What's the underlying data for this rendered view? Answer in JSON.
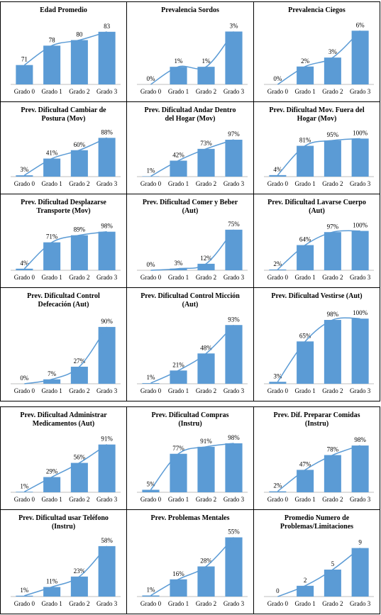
{
  "chart_data": [
    {
      "type": "bar",
      "title": "Edad Promedio",
      "categories": [
        "Grado 0",
        "Grado 1",
        "Grado 2",
        "Grado 3"
      ],
      "values": [
        71,
        78,
        80,
        83
      ],
      "color": "#5b9bd5",
      "ylim": [
        64,
        85
      ]
    },
    {
      "type": "bar",
      "title": "Prevalencia Sordos",
      "categories": [
        "Grado 0",
        "Grado 1",
        "Grado 2",
        "Grado 3"
      ],
      "values": [
        0,
        1,
        1,
        3
      ],
      "value_labels": [
        "0%",
        "1%",
        "1%",
        "3%"
      ],
      "color": "#5b9bd5",
      "ylim": [
        0,
        3.3
      ]
    },
    {
      "type": "bar",
      "title": "Prevalencia Ciegos",
      "categories": [
        "Grado 0",
        "Grado 1",
        "Grado 2",
        "Grado 3"
      ],
      "values": [
        0,
        2,
        3,
        6
      ],
      "value_labels": [
        "0%",
        "2%",
        "3%",
        "6%"
      ],
      "color": "#5b9bd5",
      "ylim": [
        0,
        6.5
      ]
    },
    {
      "type": "bar",
      "title": "Prev. Dificultad Cambiar de Postura (Mov)",
      "categories": [
        "Grado 0",
        "Grado 1",
        "Grado 2",
        "Grado 3"
      ],
      "values": [
        3,
        41,
        60,
        88
      ],
      "value_labels": [
        "3%",
        "41%",
        "60%",
        "88%"
      ],
      "color": "#5b9bd5",
      "ylim": [
        0,
        95
      ]
    },
    {
      "type": "bar",
      "title": "Prev. Dificultad Andar Dentro del Hogar (Mov)",
      "categories": [
        "Grado 0",
        "Grado 1",
        "Grado 2",
        "Grado 3"
      ],
      "values": [
        1,
        42,
        73,
        97
      ],
      "value_labels": [
        "1%",
        "42%",
        "73%",
        "97%"
      ],
      "color": "#5b9bd5",
      "ylim": [
        0,
        110
      ]
    },
    {
      "type": "bar",
      "title": "Prev. Dificultad Mov. Fuera del Hogar (Mov)",
      "categories": [
        "Grado 0",
        "Grado 1",
        "Grado 2",
        "Grado 3"
      ],
      "values": [
        4,
        81,
        95,
        100
      ],
      "value_labels": [
        "4%",
        "81%",
        "95%",
        "100%"
      ],
      "color": "#5b9bd5",
      "ylim": [
        0,
        110
      ]
    },
    {
      "type": "bar",
      "title": "Prev. Dificultad Desplazarse Transporte (Mov)",
      "categories": [
        "Grado 0",
        "Grado 1",
        "Grado 2",
        "Grado 3"
      ],
      "values": [
        4,
        71,
        89,
        98
      ],
      "value_labels": [
        "4%",
        "71%",
        "89%",
        "98%"
      ],
      "color": "#5b9bd5",
      "ylim": [
        0,
        110
      ]
    },
    {
      "type": "bar",
      "title": "Prev. Dificultad Comer y Beber (Aut)",
      "categories": [
        "Grado 0",
        "Grado 1",
        "Grado 2",
        "Grado 3"
      ],
      "values": [
        0,
        3,
        12,
        75
      ],
      "value_labels": [
        "0%",
        "3%",
        "12%",
        "75%"
      ],
      "color": "#5b9bd5",
      "ylim": [
        0,
        80
      ]
    },
    {
      "type": "bar",
      "title": "Prev. Dificultad Lavarse Cuerpo (Aut)",
      "categories": [
        "Grado 0",
        "Grado 1",
        "Grado 2",
        "Grado 3"
      ],
      "values": [
        2,
        64,
        97,
        100
      ],
      "value_labels": [
        "2%",
        "64%",
        "97%",
        "100%"
      ],
      "color": "#5b9bd5",
      "ylim": [
        0,
        110
      ]
    },
    {
      "type": "bar",
      "title": "Prev. Dificultad Control Defecación (Aut)",
      "categories": [
        "Grado 0",
        "Grado 1",
        "Grado 2",
        "Grado 3"
      ],
      "values": [
        0,
        7,
        27,
        90
      ],
      "value_labels": [
        "0%",
        "7%",
        "27%",
        "90%"
      ],
      "color": "#5b9bd5",
      "ylim": [
        0,
        100
      ]
    },
    {
      "type": "bar",
      "title": "Prev. Dificultad Control Micción (Aut)",
      "categories": [
        "Grado 0",
        "Grado 1",
        "Grado 2",
        "Grado 3"
      ],
      "values": [
        1,
        21,
        48,
        93
      ],
      "value_labels": [
        "1%",
        "21%",
        "48%",
        "93%"
      ],
      "color": "#5b9bd5",
      "ylim": [
        0,
        100
      ]
    },
    {
      "type": "bar",
      "title": "Prev. Dificultad Vestirse (Aut)",
      "categories": [
        "Grado 0",
        "Grado 1",
        "Grado 2",
        "Grado 3"
      ],
      "values": [
        3,
        65,
        98,
        100
      ],
      "value_labels": [
        "3%",
        "65%",
        "98%",
        "100%"
      ],
      "color": "#5b9bd5",
      "ylim": [
        0,
        110
      ]
    },
    {
      "type": "bar",
      "title": "Prev. Dificultad Administrar Medicamentos (Aut)",
      "categories": [
        "Grado 0",
        "Grado 1",
        "Grado 2",
        "Grado 3"
      ],
      "values": [
        1,
        29,
        56,
        91
      ],
      "value_labels": [
        "1%",
        "29%",
        "56%",
        "91%"
      ],
      "color": "#5b9bd5",
      "ylim": [
        0,
        100
      ]
    },
    {
      "type": "bar",
      "title": "Prev. Dificultad Compras (Instru)",
      "categories": [
        "Grado 0",
        "Grado 1",
        "Grado 2",
        "Grado 3"
      ],
      "values": [
        5,
        77,
        91,
        98
      ],
      "value_labels": [
        "5%",
        "77%",
        "91%",
        "98%"
      ],
      "color": "#5b9bd5",
      "ylim": [
        0,
        105
      ]
    },
    {
      "type": "bar",
      "title": "Prev. Dif. Preparar Comidas (Instru)",
      "categories": [
        "Grado 0",
        "Grado 1",
        "Grado 2",
        "Grado 3"
      ],
      "values": [
        2,
        47,
        78,
        98
      ],
      "value_labels": [
        "2%",
        "47%",
        "78%",
        "98%"
      ],
      "color": "#5b9bd5",
      "ylim": [
        0,
        110
      ]
    },
    {
      "type": "bar",
      "title": "Prev. Dificultad usar Teléfono (Instru)",
      "categories": [
        "Grado 0",
        "Grado 1",
        "Grado 2",
        "Grado 3"
      ],
      "values": [
        1,
        11,
        23,
        58
      ],
      "value_labels": [
        "1%",
        "11%",
        "23%",
        "58%"
      ],
      "color": "#5b9bd5",
      "ylim": [
        0,
        62
      ]
    },
    {
      "type": "bar",
      "title": "Prev. Problemas Mentales",
      "categories": [
        "Grado 0",
        "Grado 1",
        "Grado 2",
        "Grado 3"
      ],
      "values": [
        1,
        16,
        28,
        55
      ],
      "value_labels": [
        "1%",
        "16%",
        "28%",
        "55%"
      ],
      "color": "#5b9bd5",
      "ylim": [
        0,
        58
      ]
    },
    {
      "type": "bar",
      "title": "Promedio Numero de Problemas/Limitaciones",
      "categories": [
        "Grado 0",
        "Grado 1",
        "Grado 2",
        "Grado 3"
      ],
      "values": [
        0,
        2,
        5,
        9
      ],
      "color": "#5b9bd5",
      "ylim": [
        0,
        10
      ]
    }
  ]
}
